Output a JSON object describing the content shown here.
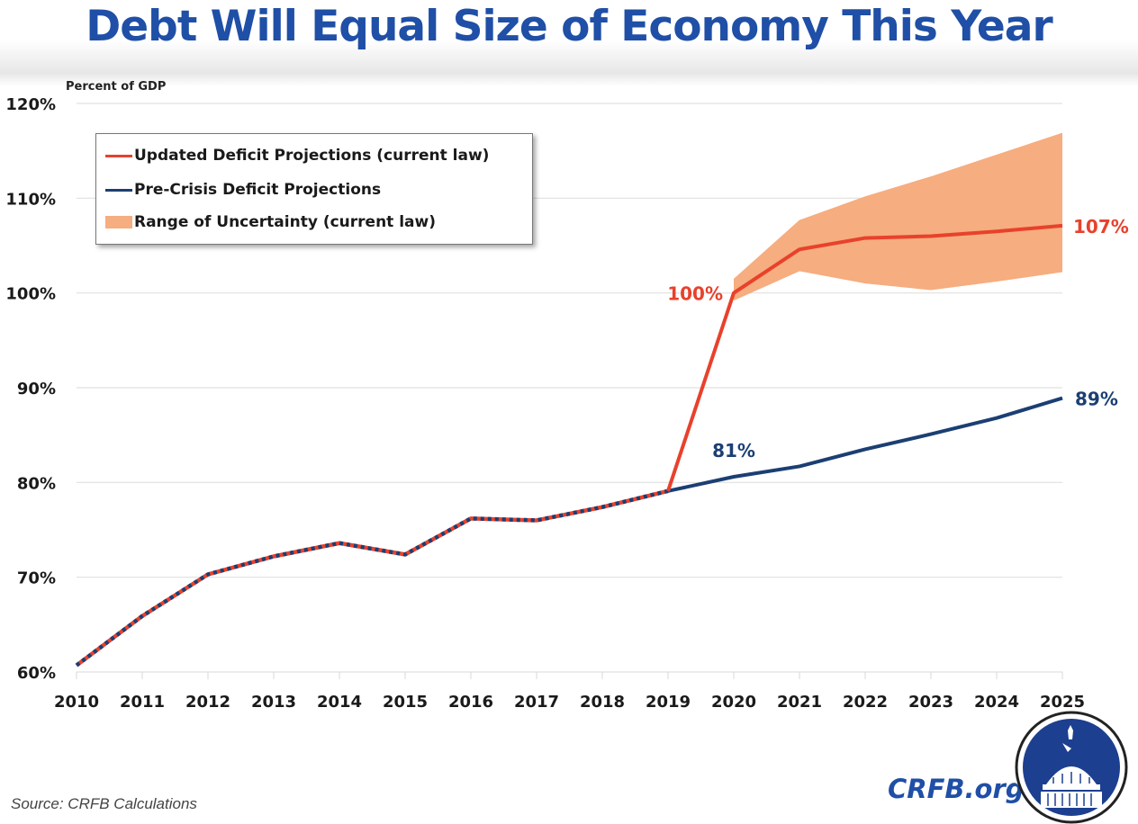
{
  "header": {
    "title": "Debt Will Equal Size of Economy This Year"
  },
  "footer": {
    "source": "Source: CRFB Calculations",
    "brand": "CRFB.org",
    "logo": "capitol-dome-seal-icon"
  },
  "colors": {
    "updated": "#e8412c",
    "precrisis": "#1b3f73",
    "range": "#f6ad7f",
    "title": "#1f4fa6",
    "grid": "#e0e0e0"
  },
  "chart_data": {
    "type": "line",
    "title": "Debt Will Equal Size of Economy This Year",
    "xlabel": "",
    "ylabel": "Percent of GDP",
    "ylim": [
      60,
      120
    ],
    "yticks": [
      60,
      70,
      80,
      90,
      100,
      110,
      120
    ],
    "ytick_labels": [
      "60%",
      "70%",
      "80%",
      "90%",
      "100%",
      "110%",
      "120%"
    ],
    "x": [
      2010,
      2011,
      2012,
      2013,
      2014,
      2015,
      2016,
      2017,
      2018,
      2019,
      2020,
      2021,
      2022,
      2023,
      2024,
      2025
    ],
    "xtick_labels": [
      "2010",
      "2011",
      "2012",
      "2013",
      "2014",
      "2015",
      "2016",
      "2017",
      "2018",
      "2019",
      "2020",
      "2021",
      "2022",
      "2023",
      "2024",
      "2025"
    ],
    "grid": true,
    "legend_position": "top-left",
    "series": [
      {
        "name": "Updated Deficit Projections (current law)",
        "key": "updated",
        "values": [
          60.7,
          65.9,
          70.3,
          72.2,
          73.6,
          72.4,
          76.2,
          76.0,
          77.4,
          79.1,
          100.0,
          104.6,
          105.8,
          106.0,
          106.5,
          107.1
        ]
      },
      {
        "name": "Pre-Crisis Deficit Projections",
        "key": "precrisis",
        "values": [
          60.7,
          65.9,
          70.3,
          72.2,
          73.6,
          72.4,
          76.2,
          76.0,
          77.4,
          79.1,
          80.6,
          81.7,
          83.5,
          85.1,
          86.8,
          88.9
        ]
      },
      {
        "name": "Range of Uncertainty (current law)",
        "key": "range",
        "type": "area",
        "x": [
          2020,
          2021,
          2022,
          2023,
          2024,
          2025
        ],
        "upper": [
          101.5,
          107.7,
          110.2,
          112.3,
          114.6,
          116.9
        ],
        "lower": [
          99.2,
          102.3,
          101.0,
          100.3,
          101.2,
          102.2
        ]
      }
    ],
    "annotations": [
      {
        "text": "100%",
        "x": 2020,
        "y": 100,
        "series": "updated"
      },
      {
        "text": "107%",
        "x": 2025,
        "y": 107.1,
        "series": "updated"
      },
      {
        "text": "81%",
        "x": 2020,
        "y": 80.6,
        "series": "precrisis"
      },
      {
        "text": "89%",
        "x": 2025,
        "y": 88.9,
        "series": "precrisis"
      }
    ]
  }
}
